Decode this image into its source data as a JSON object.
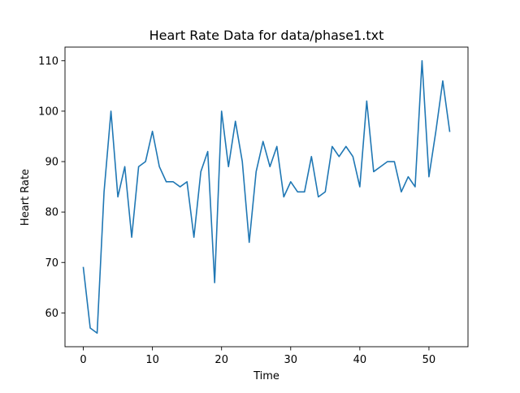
{
  "chart_data": {
    "type": "line",
    "title": "Heart Rate Data for data/phase1.txt",
    "xlabel": "Time",
    "ylabel": "Heart Rate",
    "xlim": [
      -2.65,
      55.65
    ],
    "ylim": [
      53.3,
      112.7
    ],
    "xticks": [
      0,
      10,
      20,
      30,
      40,
      50
    ],
    "yticks": [
      60,
      70,
      80,
      90,
      100,
      110
    ],
    "grid": false,
    "series": [
      {
        "color": "#1f77b4",
        "x": [
          0,
          1,
          2,
          3,
          4,
          5,
          6,
          7,
          8,
          9,
          10,
          11,
          12,
          13,
          14,
          15,
          16,
          17,
          18,
          19,
          20,
          21,
          22,
          23,
          24,
          25,
          26,
          27,
          28,
          29,
          30,
          31,
          32,
          33,
          34,
          35,
          36,
          37,
          38,
          39,
          40,
          41,
          42,
          43,
          44,
          45,
          46,
          47,
          48,
          49,
          50,
          51,
          52,
          53
        ],
        "values": [
          69,
          57,
          56,
          84,
          100,
          83,
          89,
          75,
          89,
          90,
          96,
          89,
          86,
          86,
          85,
          86,
          75,
          88,
          92,
          66,
          100,
          89,
          98,
          90,
          74,
          88,
          94,
          89,
          93,
          83,
          86,
          84,
          84,
          91,
          83,
          84,
          93,
          91,
          93,
          91,
          85,
          102,
          88,
          89,
          90,
          90,
          84,
          87,
          85,
          110,
          87,
          96,
          106,
          96
        ]
      }
    ]
  }
}
